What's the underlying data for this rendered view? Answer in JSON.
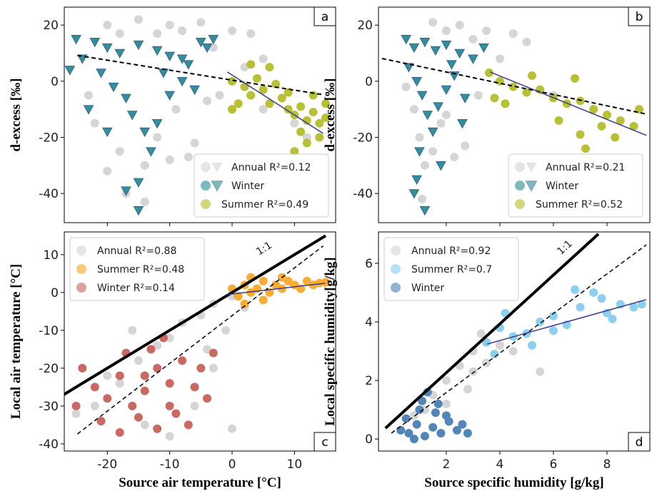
{
  "chart_data": [
    {
      "type": "scatter",
      "panel_label": "a",
      "panel_label_corner": "upper right",
      "ylabel": "d-excess [‰]",
      "xtick_labels": false,
      "xlim": [
        -26.9,
        16.6
      ],
      "ylim": [
        -50.4,
        26.4
      ],
      "xticks": [
        -20,
        -10,
        0,
        10
      ],
      "yticks": [
        -40,
        -20,
        0,
        20
      ],
      "legend": "lower right",
      "series": [
        {
          "name": "Annual R²=0.12",
          "color": "#d3d3d3",
          "marker": "circle",
          "legend_markers": [
            "circle",
            "triangle"
          ],
          "x": [
            -20,
            -15,
            -10,
            -5,
            0,
            3,
            -8,
            -12,
            -18,
            -3,
            2,
            5,
            -22,
            -18,
            -14,
            -10,
            -7,
            -6,
            -20,
            -17,
            -12,
            -9,
            0,
            -2,
            5,
            10,
            12,
            -4,
            -23,
            -14
          ],
          "y": [
            20,
            22,
            20,
            21,
            18,
            17,
            18,
            17,
            17,
            12,
            5,
            8,
            -15,
            -25,
            -30,
            -28,
            -27,
            -22,
            -32,
            -40,
            -20,
            -10,
            0,
            -5,
            -10,
            -15,
            -20,
            -7,
            -5,
            -43
          ]
        },
        {
          "name": "Winter",
          "color": "#2a8a96",
          "edge": "#1e4f8a",
          "marker": "triangle",
          "legend_markers": [
            "circle",
            "triangle"
          ],
          "x": [
            -25,
            -22,
            -20,
            -18,
            -15,
            -12,
            -10,
            -8,
            -5,
            -24,
            -21,
            -19,
            -17,
            -16,
            -14,
            -12,
            -10,
            -8,
            -6,
            -13,
            -15,
            -17,
            -20,
            -23,
            -26,
            -11,
            -7,
            -4,
            -3,
            -15
          ],
          "y": [
            15,
            14,
            12,
            10,
            13,
            11,
            9,
            8,
            14,
            8,
            3,
            -2,
            -6,
            -12,
            -18,
            -15,
            -5,
            0,
            -3,
            -25,
            -36,
            -39,
            -18,
            -10,
            4,
            3,
            6,
            12,
            15,
            -46
          ]
        },
        {
          "name": "Summer R²=0.49",
          "color": "#b5bd2b",
          "marker": "circle",
          "x": [
            0,
            2,
            3,
            5,
            6,
            8,
            9,
            10,
            11,
            12,
            13,
            14,
            15,
            1,
            4,
            7,
            9,
            11,
            12,
            14,
            3,
            0,
            6,
            15,
            10,
            13
          ],
          "y": [
            0,
            -2,
            -5,
            -3,
            -8,
            -6,
            -10,
            -12,
            -9,
            -14,
            -11,
            -15,
            -13,
            -8,
            1,
            -1,
            -4,
            -18,
            -22,
            -20,
            6,
            -10,
            5,
            -8,
            -25,
            -5
          ]
        }
      ],
      "lines": [
        {
          "color": "#000000",
          "style": "dashed",
          "width": 2,
          "x": [
            -24.8,
            14.6
          ],
          "y": [
            9.2,
            -4.8
          ]
        },
        {
          "color": "#3b3b8f",
          "style": "solid",
          "width": 1.5,
          "x": [
            -0.76,
            14.6
          ],
          "y": [
            3.3,
            -18.6
          ]
        }
      ]
    },
    {
      "type": "scatter",
      "panel_label": "b",
      "panel_label_corner": "upper right",
      "ylabel": "d-excess [‰]",
      "xtick_labels": false,
      "xlim": [
        -0.53,
        9.6
      ],
      "ylim": [
        -50.4,
        26.4
      ],
      "xticks": [
        2,
        4,
        6,
        8
      ],
      "yticks": [
        -40,
        -20,
        0,
        20
      ],
      "legend": "lower right",
      "series": [
        {
          "name": "Annual R²=0.21",
          "color": "#d3d3d3",
          "marker": "circle",
          "legend_markers": [
            "circle",
            "triangle"
          ],
          "x": [
            1.5,
            2.5,
            3.5,
            4.5,
            2,
            3,
            5,
            1,
            1.2,
            1.5,
            2.3,
            2.7,
            1.8,
            0.8,
            3.2,
            6,
            0.5,
            2,
            1.1,
            4
          ],
          "y": [
            21,
            20,
            18,
            17,
            18,
            15,
            14,
            -20,
            -30,
            -25,
            -27,
            -23,
            -15,
            -10,
            -5,
            -5,
            -2,
            -12,
            -42,
            8
          ]
        },
        {
          "name": "Winter",
          "color": "#2a8a96",
          "edge": "#1e4f8a",
          "marker": "triangle",
          "legend_markers": [
            "circle",
            "triangle"
          ],
          "x": [
            0.5,
            0.8,
            1.2,
            1.6,
            2,
            2.5,
            3,
            0.6,
            0.9,
            1.1,
            1.3,
            1.5,
            1.7,
            2,
            2.3,
            2.7,
            1,
            0.9,
            0.8,
            1.2,
            1.8,
            2.6,
            3.4,
            2.2
          ],
          "y": [
            15,
            12,
            14,
            11,
            13,
            10,
            8,
            5,
            0,
            -5,
            -12,
            -18,
            -9,
            -3,
            2,
            -6,
            -25,
            -35,
            -40,
            -46,
            -30,
            -15,
            12,
            6
          ]
        },
        {
          "name": "Summer R²=0.52",
          "color": "#b5bd2b",
          "marker": "circle",
          "x": [
            3.6,
            4,
            4.5,
            5,
            5.5,
            6,
            6.5,
            7,
            7.5,
            8,
            8.5,
            9,
            6.2,
            7,
            7.2,
            8.3,
            4.2,
            5.2,
            6.8,
            9.2,
            3.8,
            7.8
          ],
          "y": [
            3,
            0,
            -2,
            -4,
            -3,
            -6,
            -8,
            -7,
            -10,
            -12,
            -14,
            -16,
            -14,
            -19,
            -24,
            -20,
            -8,
            2,
            1,
            -10,
            -6,
            -16
          ]
        }
      ],
      "lines": [
        {
          "color": "#000000",
          "style": "dashed",
          "width": 2,
          "x": [
            -0.4,
            9.47
          ],
          "y": [
            8.1,
            -11.7
          ]
        },
        {
          "color": "#3b3b8f",
          "style": "solid",
          "width": 1.5,
          "x": [
            3.63,
            9.47
          ],
          "y": [
            3.3,
            -19.3
          ]
        }
      ]
    },
    {
      "type": "scatter",
      "panel_label": "c",
      "panel_label_corner": "lower right",
      "ylabel": "Local air temperature [°C]",
      "xlabel": "Source air temperature [°C]",
      "xlim": [
        -26.9,
        16.6
      ],
      "ylim": [
        -41.9,
        16
      ],
      "xticks": [
        -20,
        -10,
        0,
        10
      ],
      "yticks": [
        -40,
        -30,
        -20,
        -10,
        0,
        10
      ],
      "legend": "upper left",
      "series": [
        {
          "name": "Annual R²=0.88",
          "color": "#d3d3d3",
          "marker": "circle",
          "x": [
            -20,
            -15,
            -10,
            -5,
            -3,
            0,
            -8,
            -12,
            -18,
            -22,
            -14,
            -10,
            -6,
            -3,
            -1,
            2,
            -16,
            -4,
            -25,
            0
          ],
          "y": [
            -22,
            -18,
            -12,
            -6,
            -3,
            -1,
            -8,
            -14,
            -24,
            -30,
            -35,
            -38,
            -30,
            -20,
            -10,
            -4,
            -10,
            -15,
            -32,
            -36
          ]
        },
        {
          "name": "Summer R²=0.48",
          "color": "#f8a826",
          "marker": "circle",
          "x": [
            0,
            1,
            2,
            3,
            4,
            5,
            6,
            7,
            8,
            9,
            10,
            11,
            12,
            13,
            14,
            15,
            2,
            5,
            8,
            3
          ],
          "y": [
            1,
            -1,
            2,
            0,
            1,
            3,
            0,
            2,
            1,
            3,
            2,
            1,
            3,
            2,
            2.5,
            2.7,
            -3,
            -2,
            4,
            4
          ]
        },
        {
          "name": "Winter R²=0.14",
          "color": "#c8605a",
          "marker": "circle",
          "x": [
            -24,
            -22,
            -20,
            -18,
            -16,
            -14,
            -12,
            -10,
            -8,
            -6,
            -4,
            -21,
            -18,
            -15,
            -12,
            -9,
            -7,
            -13,
            -11,
            -3,
            -25,
            -17,
            -5,
            -10,
            -14
          ],
          "y": [
            -20,
            -25,
            -28,
            -22,
            -30,
            -26,
            -20,
            -24,
            -18,
            -25,
            -28,
            -34,
            -37,
            -33,
            -36,
            -32,
            -35,
            -15,
            -12,
            -16,
            -30,
            -16,
            -20,
            -30,
            -22
          ]
        }
      ],
      "lines": [
        {
          "color": "#000000",
          "style": "solid",
          "width": 4,
          "x": [
            -27,
            15
          ],
          "y": [
            -27,
            15
          ]
        },
        {
          "color": "#000000",
          "style": "dashed",
          "width": 1.5,
          "x": [
            -24.8,
            14.6
          ],
          "y": [
            -37.4,
            12.3
          ]
        },
        {
          "color": "#3b3b8f",
          "style": "solid",
          "width": 1.5,
          "x": [
            -1,
            14.9
          ],
          "y": [
            -0.6,
            2.45
          ]
        }
      ],
      "annotations": [
        {
          "text": "1:1",
          "x": 5.4,
          "y": 10.9
        }
      ]
    },
    {
      "type": "scatter",
      "panel_label": "d",
      "panel_label_corner": "lower right",
      "ylabel": "Local specific humidity[g/kg]",
      "xlabel": "Source specific humidity [g/kg]",
      "xlim": [
        -0.53,
        9.6
      ],
      "ylim": [
        -0.41,
        7.07
      ],
      "xticks": [
        2,
        4,
        6,
        8
      ],
      "yticks": [
        0,
        2,
        4,
        6
      ],
      "legend": "upper left",
      "series": [
        {
          "name": "Annual R²=0.92",
          "color": "#d3d3d3",
          "marker": "circle",
          "x": [
            0.8,
            1.5,
            2,
            2.5,
            3,
            3.5,
            4,
            3,
            2.8,
            3.5,
            5.5,
            4.5,
            2,
            1.2,
            3.3
          ],
          "y": [
            0.8,
            1.5,
            2,
            2.5,
            3,
            3.3,
            3.2,
            2.3,
            1.7,
            2.6,
            2.3,
            3,
            1.2,
            1,
            3.6
          ]
        },
        {
          "name": "Summer R²=0.7",
          "color": "#87cdee",
          "marker": "circle",
          "x": [
            3.5,
            4,
            4.5,
            5,
            5.5,
            6,
            6.5,
            7,
            7.5,
            8,
            8.5,
            9,
            9.3,
            4.2,
            6.8,
            7.8,
            5.2,
            6,
            8.2,
            3.8
          ],
          "y": [
            3.3,
            3.8,
            3.5,
            3.6,
            4,
            4.2,
            3.9,
            4.5,
            5,
            4.3,
            4.6,
            4.5,
            4.6,
            4.3,
            5.1,
            4.8,
            3.2,
            3.7,
            4.1,
            2.9
          ]
        },
        {
          "name": "Winter",
          "color": "#4a80b5",
          "marker": "circle",
          "x": [
            0.3,
            0.6,
            0.9,
            1.2,
            1.5,
            1.8,
            2.1,
            2.4,
            2.8,
            0.5,
            1,
            1.3,
            1.6,
            2,
            0.8,
            1.1,
            2.6,
            1.7
          ],
          "y": [
            0.3,
            0.2,
            0.5,
            0.1,
            0.4,
            0.2,
            0.6,
            0.3,
            0.2,
            0.7,
            1,
            1.6,
            0.9,
            0.8,
            0,
            1.3,
            0.5,
            1.2
          ]
        }
      ],
      "lines": [
        {
          "color": "#000000",
          "style": "solid",
          "width": 4,
          "x": [
            -0.27,
            7.68
          ],
          "y": [
            0.37,
            7.0
          ]
        },
        {
          "color": "#000000",
          "style": "dashed",
          "width": 1.5,
          "x": [
            -0.05,
            9.47
          ],
          "y": [
            0.2,
            6.63
          ]
        },
        {
          "color": "#3b3b8f",
          "style": "solid",
          "width": 1.5,
          "x": [
            3.52,
            9.47
          ],
          "y": [
            3.24,
            4.76
          ]
        }
      ],
      "annotations": [
        {
          "text": "1:1",
          "x": 6.5,
          "y": 6.46
        }
      ]
    }
  ]
}
